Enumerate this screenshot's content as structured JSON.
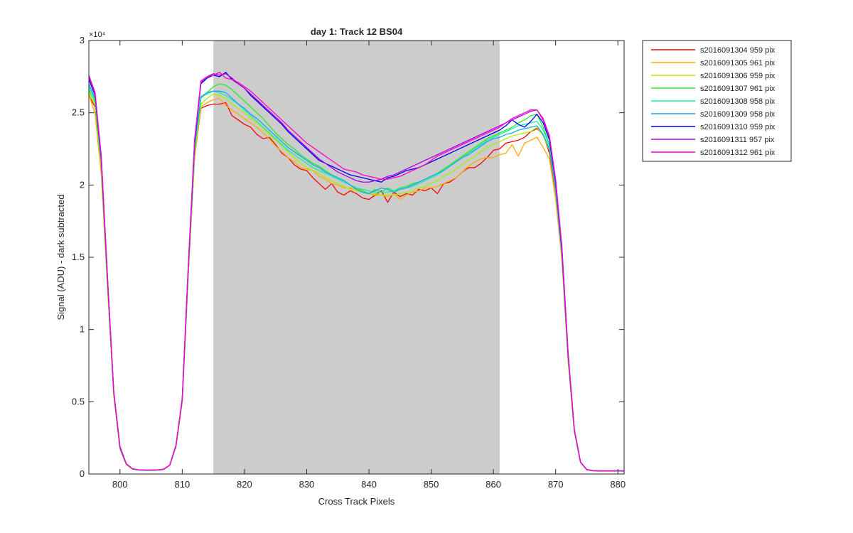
{
  "chart_data": {
    "type": "line",
    "title": "day 1: Track 12  BS04",
    "xlabel": "Cross Track Pixels",
    "ylabel": "Signal (ADU) - dark subtracted",
    "y_exponent_label": "×10⁴",
    "xlim": [
      795,
      881
    ],
    "ylim": [
      0,
      30000
    ],
    "xticks": [
      800,
      810,
      820,
      830,
      840,
      850,
      860,
      870,
      880
    ],
    "xtick_labels": [
      "800",
      "810",
      "820",
      "830",
      "840",
      "850",
      "860",
      "870",
      "880"
    ],
    "yticks": [
      0,
      5000,
      10000,
      15000,
      20000,
      25000,
      30000
    ],
    "ytick_labels": [
      "0",
      "0.5",
      "1",
      "1.5",
      "2",
      "2.5",
      "3"
    ],
    "shaded_region": {
      "x_range": [
        815,
        861
      ],
      "color": "#cccccc"
    },
    "grid": false,
    "legend_position": "outside-right-top",
    "x": [
      795,
      796,
      797,
      798,
      799,
      800,
      801,
      802,
      803,
      804,
      805,
      806,
      807,
      808,
      809,
      810,
      811,
      812,
      813,
      814,
      815,
      816,
      817,
      818,
      819,
      820,
      821,
      822,
      823,
      824,
      825,
      826,
      827,
      828,
      829,
      830,
      831,
      832,
      833,
      834,
      835,
      836,
      837,
      838,
      839,
      840,
      841,
      842,
      843,
      844,
      845,
      846,
      847,
      848,
      849,
      850,
      851,
      852,
      853,
      854,
      855,
      856,
      857,
      858,
      859,
      860,
      861,
      862,
      863,
      864,
      865,
      866,
      867,
      868,
      869,
      870,
      871,
      872,
      873,
      874,
      875,
      876,
      877,
      878,
      879,
      880,
      881
    ],
    "series": [
      {
        "name": "s2016091304 959 pix",
        "color": "#ff0000",
        "values": [
          26200,
          25400,
          21000,
          13000,
          5500,
          1800,
          700,
          350,
          280,
          260,
          260,
          270,
          320,
          600,
          1900,
          5000,
          14000,
          22000,
          25300,
          25500,
          25600,
          25600,
          25700,
          24800,
          24500,
          24200,
          24000,
          23500,
          23200,
          23300,
          22800,
          22200,
          21900,
          21400,
          21100,
          21000,
          20500,
          20100,
          19700,
          20100,
          19500,
          19300,
          19600,
          19400,
          19100,
          19000,
          19300,
          19600,
          18800,
          19500,
          19200,
          19400,
          19300,
          19700,
          19600,
          19800,
          19400,
          20100,
          20200,
          20500,
          20900,
          21200,
          21200,
          21500,
          21900,
          22400,
          22500,
          22900,
          23000,
          23100,
          23300,
          23700,
          23900,
          23500,
          22200,
          19500,
          15000,
          8000,
          3000,
          800,
          300,
          220,
          210,
          210,
          210,
          210,
          210
        ]
      },
      {
        "name": "s2016091305 961 pix",
        "color": "#ffaa00",
        "values": [
          26300,
          24900,
          20700,
          12800,
          5400,
          1700,
          650,
          330,
          270,
          250,
          250,
          260,
          310,
          590,
          1900,
          5000,
          14000,
          22100,
          25400,
          25700,
          25900,
          26000,
          25500,
          25200,
          24900,
          24600,
          24300,
          24000,
          23600,
          23200,
          22700,
          22300,
          21900,
          21600,
          21200,
          21100,
          21000,
          20600,
          20400,
          20100,
          20000,
          19800,
          19800,
          19700,
          19500,
          19400,
          19300,
          19300,
          19200,
          19400,
          19000,
          19300,
          19500,
          19600,
          19800,
          19800,
          19900,
          20100,
          20300,
          20500,
          20900,
          21300,
          21600,
          21800,
          21900,
          21900,
          22100,
          22200,
          22800,
          22000,
          22900,
          23100,
          23300,
          22600,
          21800,
          19000,
          14800,
          7800,
          2900,
          780,
          290,
          210,
          200,
          200,
          200,
          200,
          200
        ]
      },
      {
        "name": "s2016091306 959 pix",
        "color": "#aaee00",
        "values": [
          26400,
          25500,
          21200,
          13100,
          5500,
          1800,
          700,
          350,
          280,
          260,
          260,
          270,
          320,
          600,
          1900,
          5000,
          14100,
          22200,
          25600,
          26000,
          26300,
          26200,
          26000,
          25600,
          25300,
          25000,
          24600,
          24300,
          23900,
          23500,
          23100,
          22700,
          22300,
          21900,
          21500,
          21200,
          21000,
          20800,
          20500,
          20300,
          20100,
          19900,
          19700,
          19600,
          19500,
          19400,
          19400,
          19300,
          19300,
          19300,
          19400,
          19500,
          19600,
          19800,
          19900,
          20100,
          20300,
          20600,
          20800,
          21100,
          21400,
          21700,
          22000,
          22300,
          22600,
          22800,
          23000,
          23200,
          23400,
          23500,
          23600,
          23700,
          24000,
          23400,
          22400,
          19600,
          15200,
          8100,
          3000,
          800,
          300,
          220,
          210,
          210,
          210,
          210,
          210
        ]
      },
      {
        "name": "s2016091307 961 pix",
        "color": "#22ee22",
        "values": [
          26600,
          25700,
          21400,
          13200,
          5600,
          1800,
          700,
          350,
          280,
          260,
          260,
          270,
          320,
          610,
          1950,
          5100,
          14300,
          22500,
          26000,
          26400,
          26800,
          27000,
          26900,
          26600,
          26200,
          25800,
          25400,
          25000,
          24600,
          24100,
          23600,
          23200,
          22800,
          22500,
          22100,
          21800,
          21500,
          21300,
          21000,
          20700,
          20500,
          20300,
          20000,
          19800,
          19600,
          19400,
          19700,
          19500,
          19800,
          19600,
          19800,
          19900,
          20100,
          20200,
          20400,
          20600,
          20800,
          21100,
          21400,
          21700,
          22000,
          22300,
          22600,
          22900,
          23200,
          23400,
          23600,
          23800,
          24000,
          24300,
          24500,
          24800,
          24900,
          24000,
          22800,
          19900,
          15400,
          8200,
          3000,
          800,
          300,
          220,
          210,
          210,
          210,
          210,
          210
        ]
      },
      {
        "name": "s2016091308 958 pix",
        "color": "#11eeaa",
        "values": [
          26800,
          25900,
          21500,
          13300,
          5600,
          1800,
          700,
          350,
          280,
          260,
          260,
          270,
          320,
          610,
          1950,
          5100,
          14300,
          22600,
          26100,
          26300,
          26500,
          26400,
          26200,
          25900,
          25600,
          25200,
          24800,
          24400,
          24000,
          23600,
          23200,
          22800,
          22400,
          22100,
          21800,
          21500,
          21200,
          21000,
          20800,
          20600,
          20400,
          20200,
          20000,
          19800,
          19700,
          19600,
          19500,
          19500,
          19500,
          19600,
          19700,
          19800,
          19900,
          20100,
          20300,
          20500,
          20700,
          21000,
          21300,
          21600,
          21900,
          22200,
          22500,
          22800,
          23100,
          23300,
          23500,
          23700,
          23900,
          24100,
          24200,
          24300,
          24400,
          23800,
          22700,
          19800,
          15300,
          8200,
          3000,
          800,
          300,
          220,
          210,
          210,
          210,
          210,
          210
        ]
      },
      {
        "name": "s2016091309 958 pix",
        "color": "#11aaee",
        "values": [
          27000,
          26000,
          21600,
          13400,
          5600,
          1800,
          700,
          350,
          280,
          260,
          260,
          270,
          320,
          610,
          1950,
          5100,
          14400,
          22700,
          26100,
          26400,
          26500,
          26500,
          26400,
          26000,
          25600,
          25300,
          24900,
          24600,
          24200,
          23800,
          23400,
          23000,
          22600,
          22300,
          22000,
          21700,
          21400,
          21200,
          20900,
          20700,
          20500,
          20300,
          20000,
          19700,
          19500,
          19400,
          19600,
          19800,
          19700,
          19500,
          19700,
          19800,
          20000,
          20200,
          20400,
          20600,
          20800,
          21000,
          21300,
          21600,
          21900,
          22100,
          22400,
          22700,
          23000,
          23200,
          23300,
          23500,
          23600,
          23800,
          23900,
          24000,
          24100,
          23500,
          22500,
          19700,
          15200,
          8100,
          3000,
          800,
          300,
          220,
          210,
          210,
          210,
          210,
          210
        ]
      },
      {
        "name": "s2016091310 959 pix",
        "color": "#0000ee",
        "values": [
          27300,
          26200,
          21800,
          13500,
          5700,
          1900,
          720,
          360,
          290,
          270,
          270,
          280,
          330,
          620,
          2000,
          5200,
          14600,
          23000,
          27000,
          27400,
          27600,
          27500,
          27800,
          27300,
          27000,
          26700,
          26200,
          25800,
          25400,
          25000,
          24600,
          24200,
          23700,
          23300,
          22900,
          22500,
          22100,
          21700,
          21500,
          21300,
          21100,
          20900,
          20700,
          20600,
          20500,
          20400,
          20300,
          20200,
          20500,
          20600,
          20800,
          21000,
          21100,
          21200,
          21400,
          21600,
          21800,
          22000,
          22200,
          22400,
          22600,
          22800,
          23000,
          23200,
          23400,
          23600,
          23800,
          24100,
          24500,
          24200,
          24000,
          24400,
          24900,
          24300,
          23100,
          20200,
          15600,
          8300,
          3100,
          820,
          310,
          230,
          220,
          220,
          220,
          220,
          220
        ]
      },
      {
        "name": "s2016091311 957 pix",
        "color": "#aa00ee",
        "values": [
          27500,
          26300,
          21900,
          13600,
          5700,
          1900,
          720,
          360,
          290,
          270,
          270,
          280,
          330,
          620,
          2000,
          5200,
          14600,
          23100,
          27100,
          27500,
          27700,
          27600,
          27700,
          27400,
          27000,
          26700,
          26300,
          25900,
          25500,
          25100,
          24700,
          24300,
          23800,
          23400,
          23000,
          22600,
          22200,
          21800,
          21500,
          21200,
          20900,
          20700,
          20500,
          20300,
          20200,
          20200,
          20300,
          20400,
          20600,
          20700,
          20900,
          21100,
          21300,
          21500,
          21700,
          21900,
          22100,
          22300,
          22500,
          22700,
          22900,
          23100,
          23300,
          23500,
          23700,
          23900,
          24100,
          24300,
          24500,
          24700,
          24900,
          25100,
          25200,
          24500,
          23300,
          20300,
          15700,
          8400,
          3100,
          820,
          310,
          230,
          220,
          220,
          220,
          220,
          220
        ]
      },
      {
        "name": "s2016091312 961 pix",
        "color": "#ff00cc",
        "values": [
          27600,
          26400,
          22000,
          13600,
          5700,
          1900,
          720,
          360,
          290,
          270,
          270,
          280,
          330,
          620,
          2000,
          5200,
          14700,
          23200,
          27200,
          27500,
          27600,
          27800,
          27400,
          27300,
          27100,
          26800,
          26500,
          26100,
          25700,
          25300,
          24900,
          24500,
          24100,
          23700,
          23300,
          22900,
          22600,
          22300,
          22000,
          21700,
          21400,
          21100,
          21000,
          20900,
          20700,
          20600,
          20500,
          20400,
          20400,
          20500,
          20600,
          20800,
          21000,
          21200,
          21400,
          21700,
          22000,
          22200,
          22400,
          22600,
          22800,
          23000,
          23200,
          23400,
          23600,
          23800,
          24000,
          24300,
          24600,
          24800,
          25000,
          25200,
          25200,
          24600,
          23400,
          20400,
          15800,
          8400,
          3100,
          820,
          310,
          230,
          220,
          220,
          220,
          220,
          220
        ]
      }
    ]
  }
}
